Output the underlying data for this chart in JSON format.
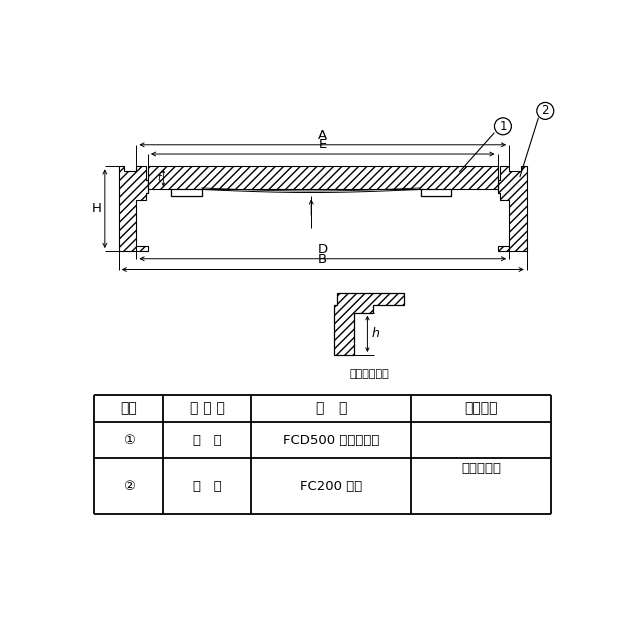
{
  "bg_color": "#ffffff",
  "line_color": "#000000",
  "table_header": [
    "部番",
    "部 品 名",
    "材   質",
    "表面処理"
  ],
  "table_row1": [
    "①",
    "ふ   た",
    "FCD500 ダクタイル",
    "锈止め塗装"
  ],
  "table_row2": [
    "②",
    "受   枞",
    "FC200 镃鉄",
    ""
  ],
  "small_label": "ふた端部寸法",
  "labels": {
    "A": "A",
    "E": "E",
    "B": "B",
    "D": "D",
    "H": "H",
    "h": "h"
  }
}
